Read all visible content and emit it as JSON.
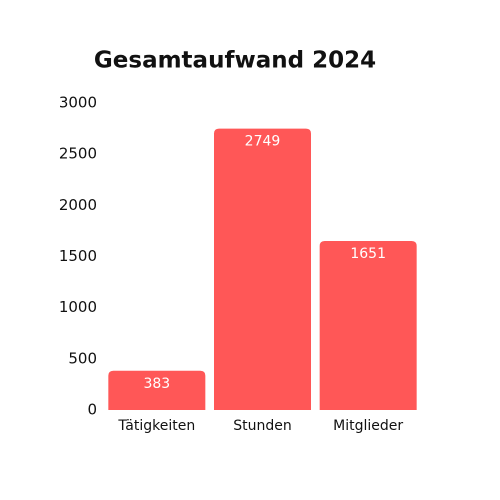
{
  "chart_data": {
    "type": "bar",
    "title": "Gesamtaufwand 2024",
    "categories": [
      "Tätigkeiten",
      "Stunden",
      "Mitglieder"
    ],
    "values": [
      383,
      2749,
      1651
    ],
    "color": "#ff5757",
    "ylim": [
      0,
      3000
    ],
    "yticks": [
      0,
      500,
      1000,
      1500,
      2000,
      2500,
      3000
    ],
    "grid": false
  }
}
